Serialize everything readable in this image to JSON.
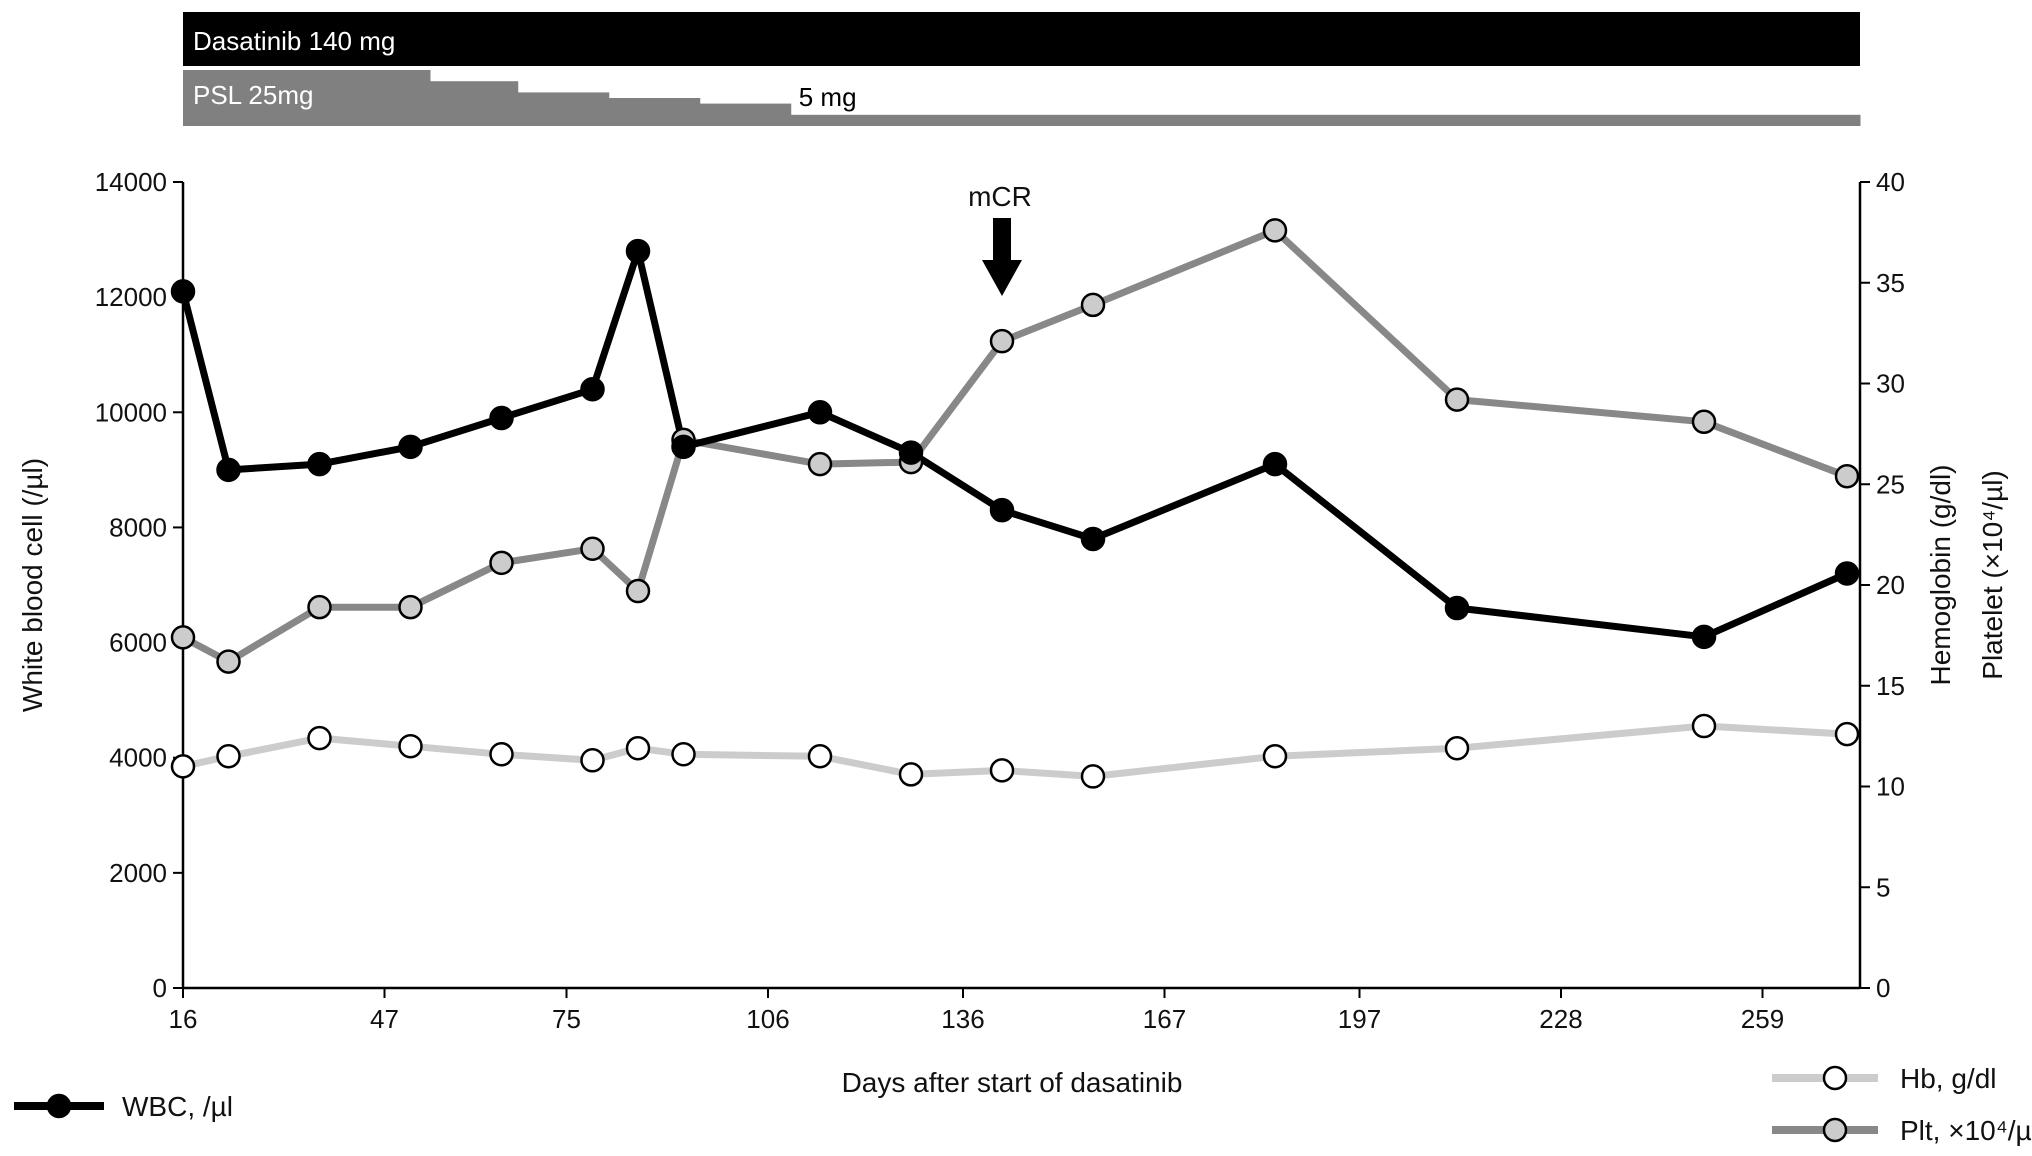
{
  "chart_data": {
    "type": "line",
    "title": "",
    "xlabel": "Days after start of dasatinib",
    "ylabel_left": "White blood cell (/µl)",
    "ylabel_right_1": "Hemoglobin (g/dl)",
    "ylabel_right_2": "Platelet (×10⁴/µl)",
    "x_ticks": [
      16,
      47,
      75,
      106,
      136,
      167,
      197,
      228,
      259
    ],
    "xlim": [
      16,
      274
    ],
    "ylim_left": [
      0,
      14000
    ],
    "y_ticks_left": [
      0,
      2000,
      4000,
      6000,
      8000,
      10000,
      12000,
      14000
    ],
    "ylim_right": [
      0,
      40
    ],
    "y_ticks_right": [
      0,
      5,
      10,
      15,
      20,
      25,
      30,
      35,
      40
    ],
    "grid": false,
    "series": [
      {
        "name": "WBC, /µl",
        "axis": "left",
        "color": "#000000",
        "marker_fill": "#000000",
        "x": [
          16,
          23,
          37,
          51,
          65,
          79,
          86,
          93,
          114,
          128,
          142,
          156,
          184,
          212,
          250,
          272
        ],
        "values": [
          12100,
          9000,
          9100,
          9400,
          9900,
          10400,
          12800,
          9400,
          10000,
          9300,
          8300,
          7800,
          9100,
          6600,
          6100,
          7200
        ]
      },
      {
        "name": "Hb, g/dl",
        "axis": "right",
        "color": "#cccccc",
        "marker_fill": "#ffffff",
        "x": [
          16,
          23,
          37,
          51,
          65,
          79,
          86,
          93,
          114,
          128,
          142,
          156,
          184,
          212,
          250,
          272
        ],
        "values": [
          11.0,
          11.5,
          12.4,
          12.0,
          11.6,
          11.3,
          11.9,
          11.6,
          11.5,
          10.6,
          10.8,
          10.5,
          11.5,
          11.9,
          13.0,
          12.6
        ]
      },
      {
        "name": "Plt, ×10⁴/µl",
        "axis": "right",
        "color": "#888888",
        "marker_fill": "#cccccc",
        "x": [
          16,
          23,
          37,
          51,
          65,
          79,
          86,
          93,
          114,
          128,
          142,
          156,
          184,
          212,
          250,
          272
        ],
        "values": [
          17.4,
          16.2,
          18.9,
          18.9,
          21.1,
          21.8,
          19.7,
          27.2,
          26.0,
          26.1,
          32.1,
          33.9,
          37.6,
          29.2,
          28.1,
          25.4
        ]
      }
    ],
    "annotations": [
      {
        "text": "mCR",
        "x": 142,
        "type": "arrow-down"
      }
    ],
    "treatment_bars": [
      {
        "label": "Dasatinib 140 mg",
        "color": "#000000",
        "text_color": "#ffffff",
        "x_start": 16,
        "x_end": 274
      },
      {
        "label": "PSL 25mg",
        "end_label": "5 mg",
        "color": "#808080",
        "text_color": "#ffffff",
        "steps": [
          {
            "x_start": 16,
            "x_end": 54,
            "dose": 25
          },
          {
            "x_start": 54,
            "x_end": 67.5,
            "dose": 20
          },
          {
            "x_start": 67.5,
            "x_end": 81.5,
            "dose": 15
          },
          {
            "x_start": 81.5,
            "x_end": 95.5,
            "dose": 12.5
          },
          {
            "x_start": 95.5,
            "x_end": 109.5,
            "dose": 10
          },
          {
            "x_start": 109.5,
            "x_end": 274,
            "dose": 5
          }
        ]
      }
    ],
    "legend": [
      "WBC, /µl",
      "Hb, g/dl",
      "Plt, ×10⁴/µl"
    ],
    "legend_placement": "bottom"
  }
}
